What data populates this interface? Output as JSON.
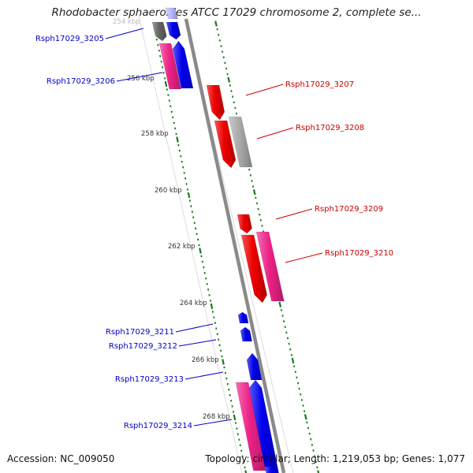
{
  "title": "Rhodobacter sphaeroides ATCC 17029 chromosome 2, complete se...",
  "footer": {
    "accession": "Accession: NC_009050",
    "summary": "Topology: circular; Length: 1,219,053 bp; Genes: 1,077"
  },
  "scale_labels": [
    "254 kbp",
    "256 kbp",
    "258 kbp",
    "260 kbp",
    "262 kbp",
    "264 kbp",
    "266 kbp",
    "268 kbp"
  ],
  "colors": {
    "backbone": "#8a8a8a",
    "tick": "#1a7a1a",
    "forward_label": "#0000cc",
    "reverse_label": "#cc0000",
    "blue_cds": "#0000ee",
    "red_cds": "#ee0000",
    "magenta_cds": "#ee2288",
    "gray_cds": "#aaaaaa",
    "dark_gray_cds": "#666666"
  },
  "gene_labels": [
    {
      "text": "Rsph17029_3205",
      "side": "left",
      "color": "blue"
    },
    {
      "text": "Rsph17029_3206",
      "side": "left",
      "color": "blue"
    },
    {
      "text": "Rsph17029_3207",
      "side": "right",
      "color": "red"
    },
    {
      "text": "Rsph17029_3208",
      "side": "right",
      "color": "red"
    },
    {
      "text": "Rsph17029_3209",
      "side": "right",
      "color": "red"
    },
    {
      "text": "Rsph17029_3210",
      "side": "right",
      "color": "red"
    },
    {
      "text": "Rsph17029_3211",
      "side": "left",
      "color": "blue"
    },
    {
      "text": "Rsph17029_3212",
      "side": "left",
      "color": "blue"
    },
    {
      "text": "Rsph17029_3213",
      "side": "left",
      "color": "blue"
    },
    {
      "text": "Rsph17029_3214",
      "side": "left",
      "color": "blue"
    }
  ]
}
